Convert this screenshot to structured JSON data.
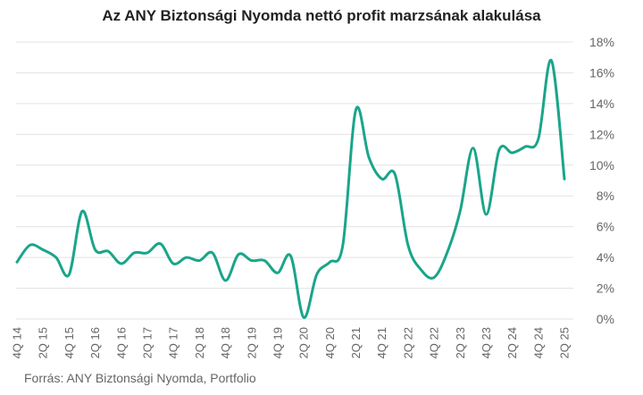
{
  "title": "Az ANY Biztonsági Nyomda nettó profit marzsának alakulása",
  "source": "Forrás: ANY Biztonsági Nyomda, Portfolio",
  "colors": {
    "line": "#1aa58a",
    "grid": "#e3e3e3",
    "text": "#666666"
  },
  "chart_data": {
    "type": "line",
    "title": "Az ANY Biztonsági Nyomda nettó profit marzsának alakulása",
    "xlabel": "",
    "ylabel": "",
    "ylim": [
      0,
      18
    ],
    "y_ticks": [
      "0%",
      "2%",
      "4%",
      "6%",
      "8%",
      "10%",
      "12%",
      "14%",
      "16%",
      "18%"
    ],
    "y_axis_position": "right",
    "grid": true,
    "x_tick_labels": [
      "4Q 14",
      "2Q 15",
      "4Q 15",
      "2Q 16",
      "4Q 16",
      "2Q 17",
      "4Q 17",
      "2Q 18",
      "4Q 18",
      "2Q 19",
      "4Q 19",
      "2Q 20",
      "4Q 20",
      "2Q 21",
      "4Q 21",
      "2Q 22",
      "4Q 22",
      "2Q 23",
      "4Q 23",
      "2Q 24",
      "4Q 24",
      "2Q 25"
    ],
    "categories": [
      "4Q 14",
      "1Q 15",
      "2Q 15",
      "3Q 15",
      "4Q 15",
      "1Q 16",
      "2Q 16",
      "3Q 16",
      "4Q 16",
      "1Q 17",
      "2Q 17",
      "3Q 17",
      "4Q 17",
      "1Q 18",
      "2Q 18",
      "3Q 18",
      "4Q 18",
      "1Q 19",
      "2Q 19",
      "3Q 19",
      "4Q 19",
      "1Q 20",
      "2Q 20",
      "3Q 20",
      "4Q 20",
      "1Q 21",
      "2Q 21",
      "3Q 21",
      "4Q 21",
      "1Q 22",
      "2Q 22",
      "3Q 22",
      "4Q 22",
      "1Q 23",
      "2Q 23",
      "3Q 23",
      "4Q 23",
      "1Q 24",
      "2Q 24",
      "3Q 24",
      "4Q 24",
      "1Q 25",
      "2Q 25"
    ],
    "series": [
      {
        "values": [
          3.7,
          4.8,
          4.5,
          4.0,
          2.9,
          7.0,
          4.5,
          4.4,
          3.6,
          4.3,
          4.3,
          4.9,
          3.6,
          4.0,
          3.8,
          4.3,
          2.5,
          4.2,
          3.8,
          3.8,
          3.0,
          4.1,
          0.1,
          2.9,
          3.7,
          4.8,
          13.6,
          10.5,
          9.1,
          9.4,
          4.8,
          3.2,
          2.7,
          4.3,
          7.0,
          11.1,
          6.8,
          11.0,
          10.8,
          11.2,
          11.7,
          16.8,
          9.1
        ]
      }
    ]
  }
}
